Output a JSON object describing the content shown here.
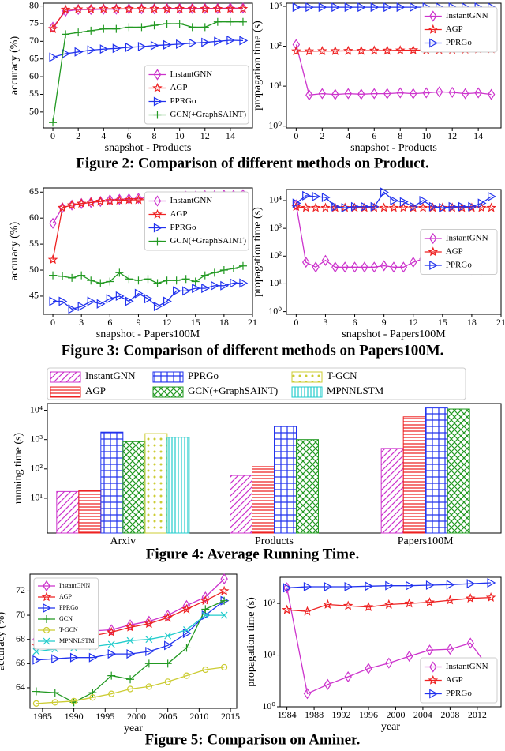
{
  "captions": [
    "Figure 2: Comparison of different methods on Product.",
    "Figure 3: Comparison of different methods on Papers100M.",
    "Figure 4: Average Running Time.",
    "Figure 5: Comparison on Aminer."
  ],
  "chart_data": [
    {
      "type": "line",
      "x_label": "snapshot - Products",
      "y_label": "accuracy (%)",
      "x": [
        0,
        1,
        2,
        3,
        4,
        5,
        6,
        7,
        8,
        9,
        10,
        11,
        12,
        13,
        14,
        15
      ],
      "xlim": [
        -0.75,
        15.75
      ],
      "xticks": [
        0,
        2,
        4,
        6,
        8,
        10,
        12,
        14
      ],
      "ylim": [
        45.5,
        80.8
      ],
      "yticks": [
        50,
        55,
        60,
        65,
        70,
        75,
        80
      ],
      "log_y": false,
      "legend": "lower right",
      "series": [
        {
          "name": "InstantGNN",
          "color": "#cc33cc",
          "marker": "diamond",
          "values": [
            74,
            78.5,
            79,
            79,
            79.1,
            79.1,
            79.2,
            79.2,
            79.2,
            79.3,
            79.3,
            79.3,
            79.3,
            79.3,
            79.4,
            79.4
          ]
        },
        {
          "name": "AGP",
          "color": "#ee2222",
          "marker": "star",
          "values": [
            73.5,
            79,
            79.1,
            79.1,
            79.2,
            79.2,
            79.2,
            79.2,
            79.2,
            79.2,
            79.2,
            79.2,
            79.2,
            79.2,
            79.2,
            79.2
          ]
        },
        {
          "name": "PPRGo",
          "color": "#2233ee",
          "marker": "triangle",
          "values": [
            65.5,
            66.5,
            67,
            67.5,
            67.8,
            68,
            68.3,
            68.5,
            68.8,
            69,
            69.2,
            69.5,
            69.7,
            70,
            70.3,
            70.2
          ]
        },
        {
          "name": "GCN(+GraphSAINT)",
          "color": "#229922",
          "marker": "plus",
          "values": [
            47,
            72,
            72.5,
            73,
            73.5,
            73.5,
            74,
            74,
            74.5,
            75,
            75,
            74,
            74,
            75.5,
            75.5,
            75.5
          ]
        }
      ]
    },
    {
      "type": "line",
      "x_label": "snapshot - Products",
      "y_label": "propagation time (s)",
      "x": [
        0,
        1,
        2,
        3,
        4,
        5,
        6,
        7,
        8,
        9,
        10,
        11,
        12,
        13,
        14,
        15
      ],
      "xlim": [
        -0.75,
        15.75
      ],
      "xticks": [
        0,
        2,
        4,
        6,
        8,
        10,
        12,
        14
      ],
      "ylim": [
        0.9,
        1200
      ],
      "yticks": [
        {
          "value": 1,
          "label": "10⁰"
        },
        {
          "value": 10,
          "label": "10¹"
        },
        {
          "value": 100,
          "label": "10²"
        },
        {
          "value": 1000,
          "label": "10³"
        }
      ],
      "log_y": true,
      "legend": "upper right",
      "series": [
        {
          "name": "InstantGNN",
          "color": "#cc33cc",
          "marker": "diamond",
          "values": [
            110,
            6,
            6.5,
            6.2,
            6.5,
            6.3,
            6.5,
            6.5,
            6.8,
            6.5,
            6.8,
            7.2,
            7,
            6.5,
            6.8,
            6.2
          ]
        },
        {
          "name": "AGP",
          "color": "#ee2222",
          "marker": "star",
          "values": [
            75,
            75,
            76,
            76,
            77,
            77,
            78,
            78,
            79,
            80,
            80,
            81,
            82,
            83,
            84,
            85
          ]
        },
        {
          "name": "PPRGo",
          "color": "#2233ee",
          "marker": "triangle",
          "values": [
            950,
            950,
            950,
            950,
            950,
            950,
            950,
            950,
            950,
            950,
            950,
            950,
            950,
            950,
            950,
            950
          ]
        }
      ]
    },
    {
      "type": "line",
      "x_label": "snapshot - Papers100M",
      "y_label": "accuracy (%)",
      "x": [
        0,
        1,
        2,
        3,
        4,
        5,
        6,
        7,
        8,
        9,
        10,
        11,
        12,
        13,
        14,
        15,
        16,
        17,
        18,
        19,
        20
      ],
      "xlim": [
        -1,
        21
      ],
      "xticks": [
        0,
        3,
        6,
        9,
        12,
        15,
        18,
        21
      ],
      "ylim": [
        41.5,
        65.8
      ],
      "yticks": [
        45,
        50,
        55,
        60,
        65
      ],
      "log_y": false,
      "legend": "upper right",
      "series": [
        {
          "name": "InstantGNN",
          "color": "#cc33cc",
          "marker": "diamond",
          "values": [
            59,
            62,
            62.5,
            62.8,
            63,
            63.2,
            63.5,
            63.6,
            63.7,
            63.8,
            63.9,
            64,
            64,
            64.1,
            64.2,
            64.2,
            64.3,
            64.3,
            64.4,
            64.4,
            64.5
          ]
        },
        {
          "name": "AGP",
          "color": "#ee2222",
          "marker": "star",
          "values": [
            52,
            62,
            62.5,
            62.8,
            63,
            63.2,
            63.3,
            63.4,
            63.5,
            63.5,
            63.6,
            63.6,
            63.7,
            63.7,
            63.8,
            63.8,
            63.9,
            63.9,
            64,
            64,
            64
          ]
        },
        {
          "name": "PPRGo",
          "color": "#2233ee",
          "marker": "triangle",
          "values": [
            44,
            44,
            42.5,
            43,
            44,
            43.5,
            44.5,
            45,
            44,
            45.5,
            44.5,
            43,
            44,
            46,
            46,
            46.5,
            46.5,
            47,
            47,
            47.5,
            47.5
          ]
        },
        {
          "name": "GCN(+GraphSAINT)",
          "color": "#229922",
          "marker": "plus",
          "values": [
            49,
            48.8,
            48.5,
            49,
            48,
            47.5,
            47.8,
            49.5,
            48.3,
            48,
            48.3,
            47.5,
            48,
            48,
            48.3,
            47.8,
            49,
            49.5,
            50,
            50.3,
            50.8
          ]
        }
      ]
    },
    {
      "type": "line",
      "x_label": "snapshot - Papers100M",
      "y_label": "propagation time (s)",
      "x": [
        0,
        1,
        2,
        3,
        4,
        5,
        6,
        7,
        8,
        9,
        10,
        11,
        12,
        13,
        14,
        15,
        16,
        17,
        18,
        19,
        20
      ],
      "xlim": [
        -1,
        21
      ],
      "xticks": [
        0,
        3,
        6,
        9,
        12,
        15,
        18,
        21
      ],
      "ylim": [
        0.8,
        25000
      ],
      "yticks": [
        {
          "value": 1,
          "label": "10⁰"
        },
        {
          "value": 10,
          "label": "10¹"
        },
        {
          "value": 100,
          "label": "10²"
        },
        {
          "value": 1000,
          "label": "10³"
        },
        {
          "value": 10000,
          "label": "10⁴"
        }
      ],
      "log_y": true,
      "legend": "center right",
      "series": [
        {
          "name": "InstantGNN",
          "color": "#cc33cc",
          "marker": "diamond",
          "values": [
            7000,
            60,
            40,
            70,
            40,
            40,
            40,
            40,
            40,
            45,
            40,
            40,
            60,
            80,
            40,
            35,
            35,
            33,
            33,
            33,
            38
          ]
        },
        {
          "name": "AGP",
          "color": "#ee2222",
          "marker": "star",
          "values": [
            6000,
            5500,
            5500,
            5500,
            5500,
            5500,
            5500,
            5500,
            5500,
            5500,
            5500,
            5500,
            5500,
            5500,
            5500,
            5500,
            5500,
            5500,
            5500,
            5500,
            5500
          ]
        },
        {
          "name": "PPRGo",
          "color": "#2233ee",
          "marker": "triangle",
          "values": [
            8000,
            15000,
            14000,
            13000,
            6000,
            5500,
            6000,
            6000,
            6000,
            20000,
            10000,
            9000,
            6000,
            10000,
            6000,
            5500,
            6000,
            6000,
            6000,
            8000,
            14000
          ]
        }
      ]
    },
    {
      "type": "bar",
      "y_label": "running time (s)",
      "categories": [
        "Arxiv",
        "Products",
        "Papers100M"
      ],
      "ylim": [
        0.65,
        17000
      ],
      "yticks": [
        {
          "value": 10,
          "label": "10¹"
        },
        {
          "value": 100,
          "label": "10²"
        },
        {
          "value": 1000,
          "label": "10³"
        },
        {
          "value": 10000,
          "label": "10⁴"
        }
      ],
      "log_y": true,
      "legend": "top",
      "series": [
        {
          "name": "InstantGNN",
          "color": "#cc33cc",
          "pattern": "diagonal",
          "values": [
            17,
            60,
            500
          ]
        },
        {
          "name": "AGP",
          "color": "#ee2222",
          "pattern": "horizontal",
          "values": [
            18,
            120,
            6000
          ]
        },
        {
          "name": "PPRGo",
          "color": "#2233ee",
          "pattern": "grid",
          "values": [
            1800,
            2800,
            12000
          ]
        },
        {
          "name": "GCN(+GraphSAINT)",
          "color": "#229922",
          "pattern": "cross",
          "values": [
            850,
            1000,
            11000
          ]
        },
        {
          "name": "T-GCN",
          "color": "#cccc33",
          "pattern": "dots",
          "values": [
            1600,
            null,
            null
          ]
        },
        {
          "name": "MPNNLSTM",
          "color": "#22cccc",
          "pattern": "vertical",
          "values": [
            1200,
            null,
            null
          ]
        }
      ]
    },
    {
      "type": "line",
      "x_label": "year",
      "y_label": "accuracy (%)",
      "x": [
        1984,
        1987,
        1990,
        1993,
        1996,
        1999,
        2002,
        2005,
        2008,
        2011,
        2014
      ],
      "xlim": [
        1983,
        2016
      ],
      "xticks": [
        1985,
        1990,
        1995,
        2000,
        2005,
        2010,
        2015
      ],
      "ylim": [
        62.3,
        73.4
      ],
      "yticks": [
        64,
        66,
        68,
        70,
        72
      ],
      "log_y": false,
      "legend": "upper left",
      "series": [
        {
          "name": "InstantGNN",
          "color": "#cc33cc",
          "marker": "diamond",
          "values": [
            68,
            68,
            68.3,
            68.7,
            68.8,
            69.2,
            69.5,
            70,
            70.8,
            71.5,
            73
          ]
        },
        {
          "name": "AGP",
          "color": "#ee2222",
          "marker": "star",
          "values": [
            67.5,
            67.8,
            68,
            68.3,
            68.6,
            69,
            69.3,
            69.8,
            70.5,
            71.2,
            72
          ]
        },
        {
          "name": "PPRGo",
          "color": "#2233ee",
          "marker": "triangle",
          "values": [
            66.3,
            66.4,
            66.5,
            66.5,
            66.8,
            66.8,
            67,
            67.5,
            68.5,
            70,
            71.2
          ]
        },
        {
          "name": "GCN",
          "color": "#229922",
          "marker": "plus",
          "values": [
            63.7,
            63.6,
            62.8,
            63.6,
            65,
            64.7,
            66,
            66,
            67.3,
            70.5,
            71.2
          ]
        },
        {
          "name": "T-GCN",
          "color": "#cccc33",
          "marker": "circle",
          "values": [
            62.7,
            62.8,
            62.9,
            63.2,
            63.5,
            63.9,
            64.1,
            64.5,
            65,
            65.5,
            65.7
          ]
        },
        {
          "name": "MPNNLSTM",
          "color": "#22cccc",
          "marker": "x",
          "values": [
            67,
            67.2,
            67.3,
            67.4,
            67.6,
            67.9,
            68,
            68.3,
            68.8,
            70,
            70
          ]
        }
      ]
    },
    {
      "type": "line",
      "x_label": "year",
      "y_label": "propagation time (s)",
      "x": [
        1984,
        1987,
        1990,
        1993,
        1996,
        1999,
        2002,
        2005,
        2008,
        2011,
        2014
      ],
      "xlim": [
        1983,
        2015.5
      ],
      "xticks": [
        1984,
        1988,
        1992,
        1996,
        2000,
        2004,
        2008,
        2012
      ],
      "ylim": [
        1,
        320
      ],
      "yticks": [
        {
          "value": 1,
          "label": "10⁰"
        },
        {
          "value": 10,
          "label": "10¹"
        },
        {
          "value": 100,
          "label": "10²"
        }
      ],
      "log_y": true,
      "legend": "lower right",
      "series": [
        {
          "name": "InstantGNN",
          "color": "#cc33cc",
          "marker": "diamond",
          "values": [
            200,
            1.8,
            2.7,
            3.8,
            5.5,
            7,
            9.5,
            12.5,
            13,
            17,
            5
          ]
        },
        {
          "name": "AGP",
          "color": "#ee2222",
          "marker": "star",
          "values": [
            75,
            70,
            95,
            90,
            85,
            95,
            100,
            105,
            115,
            125,
            130
          ]
        },
        {
          "name": "PPRGo",
          "color": "#2233ee",
          "marker": "triangle",
          "values": [
            200,
            210,
            210,
            210,
            215,
            220,
            220,
            225,
            230,
            240,
            250
          ]
        }
      ]
    }
  ]
}
